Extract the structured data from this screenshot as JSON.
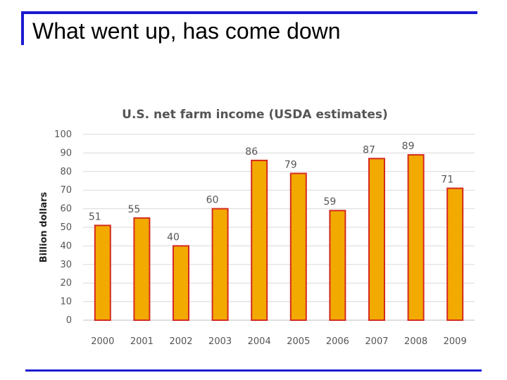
{
  "slide": {
    "title": "What went up, has come down"
  },
  "colors": {
    "rule": "#1a1ad0",
    "bar_fill": "#f2a900",
    "bar_stroke": "#d42b1e",
    "grid": "#d9d9d9",
    "text": "#555555"
  },
  "chart_data": {
    "type": "bar",
    "title": "U.S. net farm income (USDA estimates)",
    "xlabel": "",
    "ylabel": "Billion dollars",
    "ylim": [
      0,
      100
    ],
    "yticks": [
      "0",
      "10",
      "20",
      "30",
      "40",
      "50",
      "60",
      "70",
      "80",
      "90",
      "100"
    ],
    "grid": true,
    "categories": [
      "2000",
      "2001",
      "2002",
      "2003",
      "2004",
      "2005",
      "2006",
      "2007",
      "2008",
      "2009"
    ],
    "values": [
      51,
      55,
      40,
      60,
      86,
      79,
      59,
      87,
      89,
      71
    ],
    "data_labels": [
      "51",
      "55",
      "40",
      "60",
      "86",
      "79",
      "59",
      "87",
      "89",
      "71"
    ]
  }
}
